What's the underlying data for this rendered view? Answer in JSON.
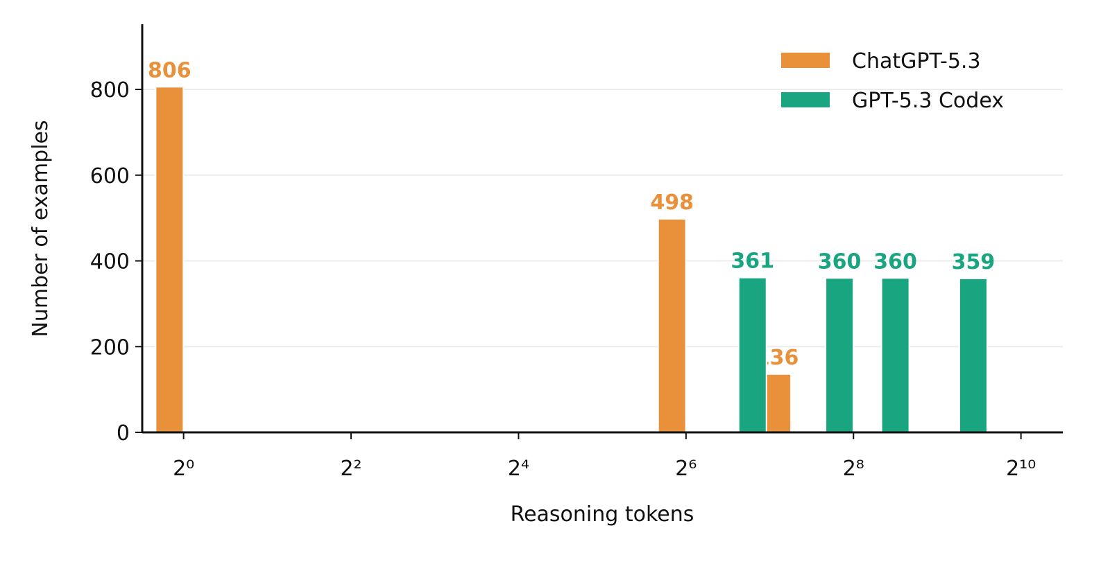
{
  "chart_data": {
    "type": "bar",
    "x_label": "Reasoning tokens",
    "y_label": "Number of examples",
    "x_scale": "log2",
    "xlim": [
      0.71,
      1448
    ],
    "ylim": [
      0,
      952
    ],
    "xticks": [
      {
        "value": 1,
        "label": "2⁰"
      },
      {
        "value": 4,
        "label": "2²"
      },
      {
        "value": 16,
        "label": "2⁴"
      },
      {
        "value": 64,
        "label": "2⁶"
      },
      {
        "value": 256,
        "label": "2⁸"
      },
      {
        "value": 1024,
        "label": "2¹⁰"
      }
    ],
    "yticks": [
      0,
      200,
      400,
      600,
      800
    ],
    "grid": true,
    "legend": "upper right",
    "series": [
      {
        "name": "ChatGPT-5.3",
        "color": "#e8913a",
        "x": [
          0.89,
          57,
          136
        ],
        "values": [
          806,
          498,
          136
        ]
      },
      {
        "name": "GPT-5.3 Codex",
        "color": "#18a57f",
        "x": [
          111,
          228,
          362,
          690
        ],
        "values": [
          361,
          360,
          360,
          359
        ]
      }
    ]
  }
}
